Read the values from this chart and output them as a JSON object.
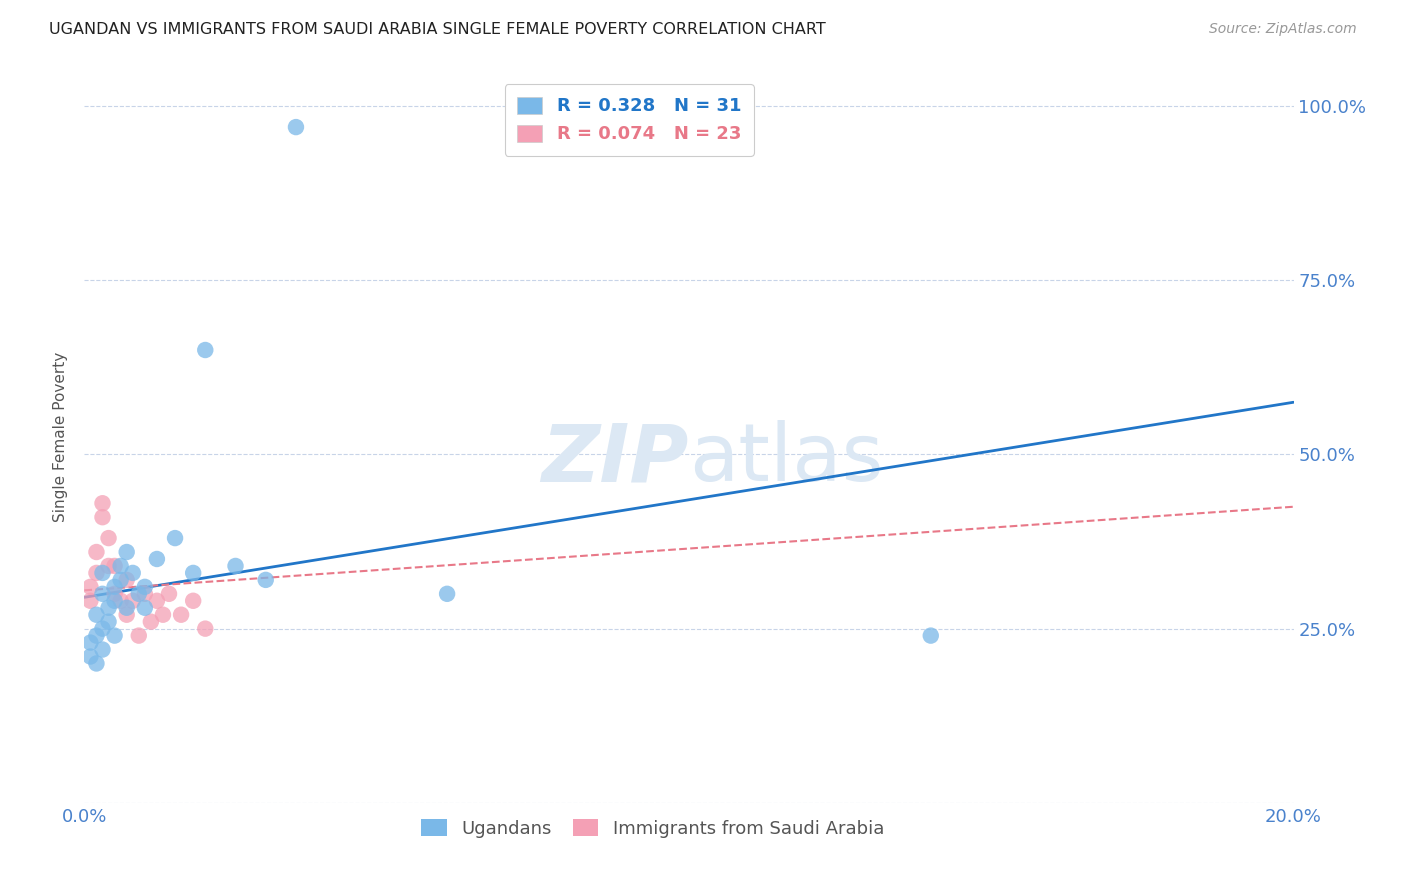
{
  "title": "UGANDAN VS IMMIGRANTS FROM SAUDI ARABIA SINGLE FEMALE POVERTY CORRELATION CHART",
  "source": "Source: ZipAtlas.com",
  "ylabel": "Single Female Poverty",
  "xlim": [
    0.0,
    0.2
  ],
  "ylim": [
    0.0,
    1.05
  ],
  "yticks": [
    0.0,
    0.25,
    0.5,
    0.75,
    1.0
  ],
  "ytick_labels": [
    "",
    "25.0%",
    "50.0%",
    "75.0%",
    "100.0%"
  ],
  "xticks": [
    0.0,
    0.04,
    0.08,
    0.12,
    0.16,
    0.2
  ],
  "xtick_labels": [
    "0.0%",
    "",
    "",
    "",
    "",
    "20.0%"
  ],
  "ugandan_R": 0.328,
  "ugandan_N": 31,
  "saudi_R": 0.074,
  "saudi_N": 23,
  "ugandan_color": "#7ab8e8",
  "saudi_color": "#f4a0b5",
  "ugandan_line_color": "#2176c8",
  "saudi_line_color": "#e87888",
  "background_color": "#ffffff",
  "grid_color": "#c8d4e8",
  "watermark_color": "#dce8f4",
  "ugandan_x": [
    0.001,
    0.001,
    0.002,
    0.002,
    0.002,
    0.003,
    0.003,
    0.003,
    0.003,
    0.004,
    0.004,
    0.005,
    0.005,
    0.005,
    0.006,
    0.006,
    0.007,
    0.007,
    0.008,
    0.009,
    0.01,
    0.01,
    0.012,
    0.015,
    0.018,
    0.02,
    0.025,
    0.03,
    0.035,
    0.06,
    0.14
  ],
  "ugandan_y": [
    0.21,
    0.23,
    0.2,
    0.24,
    0.27,
    0.22,
    0.25,
    0.3,
    0.33,
    0.26,
    0.28,
    0.29,
    0.31,
    0.24,
    0.32,
    0.34,
    0.36,
    0.28,
    0.33,
    0.3,
    0.28,
    0.31,
    0.35,
    0.38,
    0.33,
    0.65,
    0.34,
    0.32,
    0.97,
    0.3,
    0.24
  ],
  "saudi_x": [
    0.001,
    0.001,
    0.002,
    0.002,
    0.003,
    0.003,
    0.004,
    0.004,
    0.005,
    0.005,
    0.006,
    0.007,
    0.007,
    0.008,
    0.009,
    0.01,
    0.011,
    0.012,
    0.013,
    0.014,
    0.016,
    0.018,
    0.02
  ],
  "saudi_y": [
    0.29,
    0.31,
    0.33,
    0.36,
    0.41,
    0.43,
    0.38,
    0.34,
    0.3,
    0.34,
    0.29,
    0.32,
    0.27,
    0.29,
    0.24,
    0.3,
    0.26,
    0.29,
    0.27,
    0.3,
    0.27,
    0.29,
    0.25
  ],
  "ug_line_x": [
    0.0,
    0.2
  ],
  "ug_line_y": [
    0.295,
    0.575
  ],
  "sa_line_x": [
    0.0,
    0.2
  ],
  "sa_line_y": [
    0.305,
    0.425
  ]
}
